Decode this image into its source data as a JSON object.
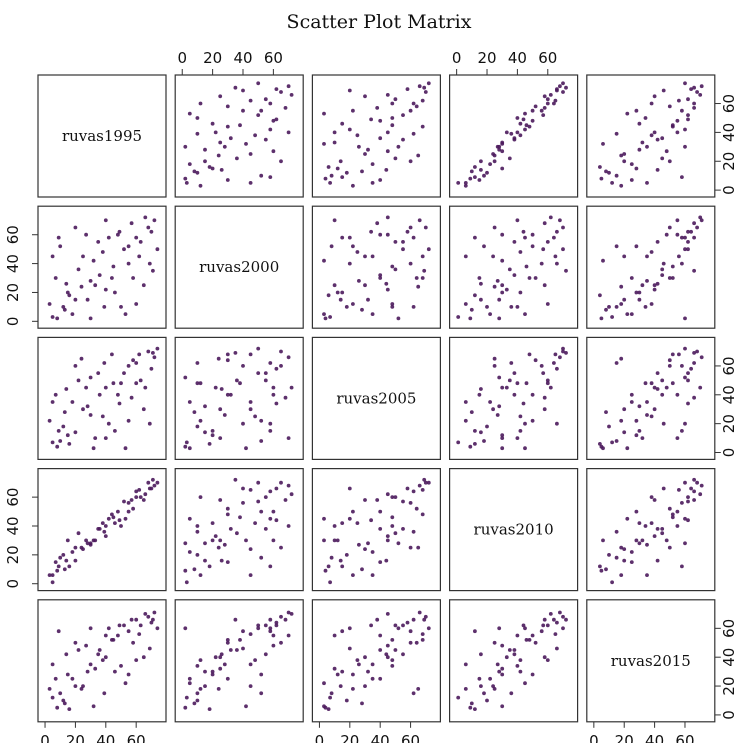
{
  "chart_data": {
    "type": "scatter",
    "title": "Scatter Plot Matrix",
    "variables": [
      "ruvas1995",
      "ruvas2000",
      "ruvas2005",
      "ruvas2010",
      "ruvas2015"
    ],
    "axis_range": [
      -2,
      77
    ],
    "ticks": [
      0,
      20,
      40,
      60
    ],
    "tick_labels": [
      "0",
      "20",
      "40",
      "60"
    ],
    "point_color": "#4b1a5c",
    "observations": [
      [
        5,
        3,
        7,
        1,
        12
      ],
      [
        12,
        10,
        18,
        20,
        10
      ],
      [
        20,
        15,
        14,
        16,
        20
      ],
      [
        8,
        2,
        4,
        9,
        5
      ],
      [
        30,
        28,
        26,
        27,
        35
      ],
      [
        36,
        32,
        40,
        38,
        45
      ],
      [
        45,
        38,
        48,
        46,
        52
      ],
      [
        52,
        50,
        55,
        57,
        62
      ],
      [
        60,
        58,
        62,
        64,
        66
      ],
      [
        68,
        65,
        70,
        70,
        68
      ],
      [
        72,
        70,
        66,
        68,
        71
      ],
      [
        15,
        20,
        12,
        30,
        28
      ],
      [
        25,
        45,
        30,
        24,
        20
      ],
      [
        40,
        22,
        45,
        33,
        40
      ],
      [
        55,
        40,
        60,
        56,
        58
      ],
      [
        63,
        55,
        50,
        60,
        62
      ],
      [
        10,
        52,
        8,
        18,
        15
      ],
      [
        28,
        15,
        32,
        28,
        30
      ],
      [
        48,
        60,
        40,
        50,
        55
      ],
      [
        70,
        62,
        58,
        66,
        64
      ],
      [
        3,
        12,
        22,
        6,
        18
      ],
      [
        18,
        5,
        35,
        22,
        25
      ],
      [
        38,
        48,
        25,
        42,
        38
      ],
      [
        58,
        30,
        64,
        52,
        50
      ],
      [
        66,
        72,
        45,
        62,
        70
      ],
      [
        22,
        36,
        50,
        35,
        45
      ],
      [
        42,
        58,
        20,
        45,
        60
      ],
      [
        50,
        10,
        48,
        40,
        34
      ],
      [
        62,
        45,
        68,
        65,
        56
      ],
      [
        33,
        25,
        10,
        30,
        32
      ],
      [
        7,
        30,
        40,
        15,
        25
      ],
      [
        27,
        60,
        45,
        30,
        48
      ],
      [
        46,
        20,
        15,
        42,
        30
      ],
      [
        57,
        68,
        38,
        58,
        66
      ],
      [
        74,
        50,
        72,
        70,
        60
      ],
      [
        13,
        8,
        28,
        10,
        8
      ],
      [
        35,
        55,
        55,
        38,
        42
      ],
      [
        44,
        30,
        68,
        48,
        52
      ],
      [
        65,
        25,
        30,
        58,
        40
      ],
      [
        20,
        65,
        60,
        25,
        50
      ],
      [
        53,
        5,
        3,
        45,
        22
      ],
      [
        5,
        45,
        35,
        6,
        35
      ],
      [
        30,
        2,
        52,
        28,
        60
      ],
      [
        40,
        70,
        10,
        40,
        55
      ],
      [
        69,
        40,
        20,
        66,
        46
      ],
      [
        16,
        18,
        6,
        12,
        4
      ],
      [
        24,
        24,
        65,
        25,
        18
      ],
      [
        49,
        62,
        34,
        44,
        62
      ],
      [
        60,
        12,
        48,
        60,
        38
      ],
      [
        71,
        35,
        69,
        72,
        66
      ],
      [
        9,
        58,
        15,
        12,
        58
      ],
      [
        39,
        10,
        62,
        36,
        15
      ],
      [
        55,
        52,
        22,
        50,
        28
      ],
      [
        32,
        42,
        3,
        30,
        6
      ],
      [
        14,
        26,
        44,
        16,
        42
      ]
    ]
  }
}
